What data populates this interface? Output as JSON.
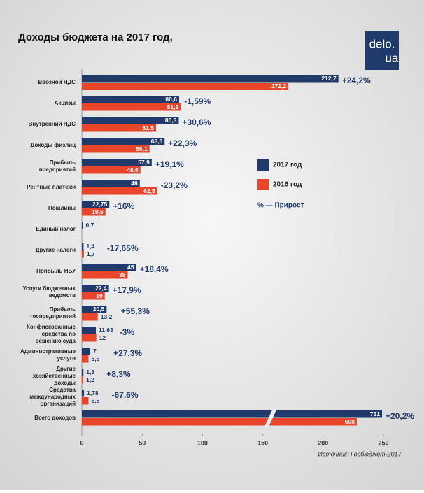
{
  "chart_data": {
    "type": "hbar",
    "title": "Доходы бюджета на 2017 год,",
    "logo": [
      "delo.",
      "ua"
    ],
    "source": "Источник: Госбюджет-2017.",
    "legend_note": "% — Прирост",
    "categories": [
      "Ввозной НДС",
      "Акцизы",
      "Внутренний НДС",
      "Доходы физлиц",
      "Прибыль\nпредприятий",
      "Рентные платежи",
      "Пошлины",
      "Единый налог",
      "Другие налоги",
      "Прибыль НБУ",
      "Услуги бюджетных\nведомств",
      "Прибыль\nгоспредприятий",
      "Конфискованные\nсредства по\nрешению суда",
      "Административные\nуслуги",
      "Другие\nхозяйственные\nдоходы",
      "Средства\nмеждународных\nорганизаций",
      "Всего доходов"
    ],
    "series": [
      {
        "name": "2017 год",
        "color": "#1f3a6b",
        "values": [
          212.7,
          80.6,
          80.3,
          68.6,
          57.9,
          48,
          22.75,
          0.7,
          1.4,
          45,
          22.4,
          20.5,
          11.63,
          7,
          1.3,
          1.78,
          731
        ],
        "value_labels": [
          "212,7",
          "80,6",
          "80,3",
          "68,6",
          "57,9",
          "48",
          "22,75",
          "0,7",
          "1,4",
          "45",
          "22,4",
          "20,5",
          "11,63",
          "7",
          "1,3",
          "1,78",
          "731"
        ]
      },
      {
        "name": "2016 год",
        "color": "#e8452a",
        "values": [
          171.2,
          81.9,
          61.5,
          56.1,
          48.6,
          62.5,
          19.6,
          null,
          1.7,
          38,
          19,
          13.2,
          12,
          5.5,
          1.2,
          5.5,
          608
        ],
        "value_labels": [
          "171,2",
          "81,9",
          "61,5",
          "56,1",
          "48,6",
          "62,5",
          "19,6",
          null,
          "1,7",
          "38",
          "19",
          "13,2",
          "12",
          "5,5",
          "1,2",
          "5,5",
          "608"
        ]
      }
    ],
    "annotations": [
      "+24,2%",
      "-1,59%",
      "+30,6%",
      "+22,3%",
      "+19,1%",
      "-23,2%",
      "+16%",
      null,
      "-17,65%",
      "+18,4%",
      "+17,9%",
      "+55,3%",
      "-3%",
      "+27,3%",
      "+8,3%",
      "-67,6%",
      "+20,2%"
    ],
    "xlim": [
      0,
      250
    ],
    "xticks": [
      0,
      50,
      100,
      150,
      200,
      250
    ],
    "axis_break": 150
  }
}
